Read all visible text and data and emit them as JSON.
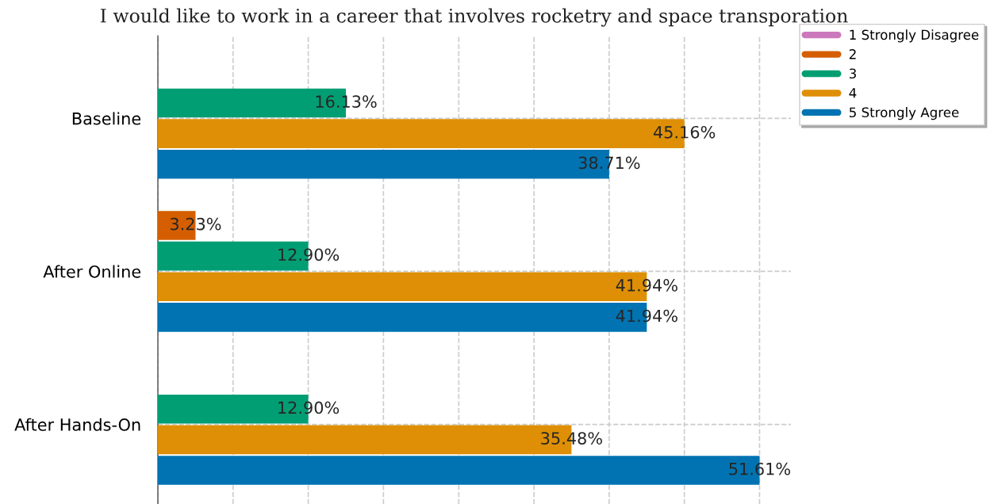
{
  "chart_data": {
    "type": "bar",
    "orientation": "horizontal",
    "title": "I would like to work in a career that involves rocketry and space transporation",
    "categories": [
      "Baseline",
      "After Online",
      "After Hands-On"
    ],
    "series": [
      {
        "name": "1 Strongly Disagree",
        "color": "#cc78bc",
        "values": [
          null,
          null,
          null
        ],
        "value_labels": [
          null,
          null,
          null
        ]
      },
      {
        "name": "2",
        "color": "#d55e00",
        "values": [
          null,
          3.23,
          null
        ],
        "value_labels": [
          null,
          "3.23%",
          null
        ]
      },
      {
        "name": "3",
        "color": "#029e73",
        "values": [
          16.13,
          12.9,
          12.9
        ],
        "value_labels": [
          "16.13%",
          "12.90%",
          "12.90%"
        ]
      },
      {
        "name": "4",
        "color": "#de8f05",
        "values": [
          45.16,
          41.94,
          35.48
        ],
        "value_labels": [
          "45.16%",
          "41.94%",
          "35.48%"
        ]
      },
      {
        "name": "5 Strongly Agree",
        "color": "#0173b2",
        "values": [
          38.71,
          41.94,
          51.61
        ],
        "value_labels": [
          "38.71%",
          "41.94%",
          "51.61%"
        ]
      }
    ],
    "xlim": [
      0,
      54.3
    ],
    "xticks": [
      {
        "value": 0,
        "label": null
      },
      {
        "value": 6.45,
        "label": null
      },
      {
        "value": 12.9,
        "label": null
      },
      {
        "value": 19.35,
        "label": null
      },
      {
        "value": 25.81,
        "label": null
      },
      {
        "value": 32.26,
        "label": null
      },
      {
        "value": 38.71,
        "label": null
      },
      {
        "value": 45.16,
        "label": null
      },
      {
        "value": 51.61,
        "label": null
      }
    ],
    "tick_labels": "y",
    "grid": true,
    "legend": "top right"
  }
}
